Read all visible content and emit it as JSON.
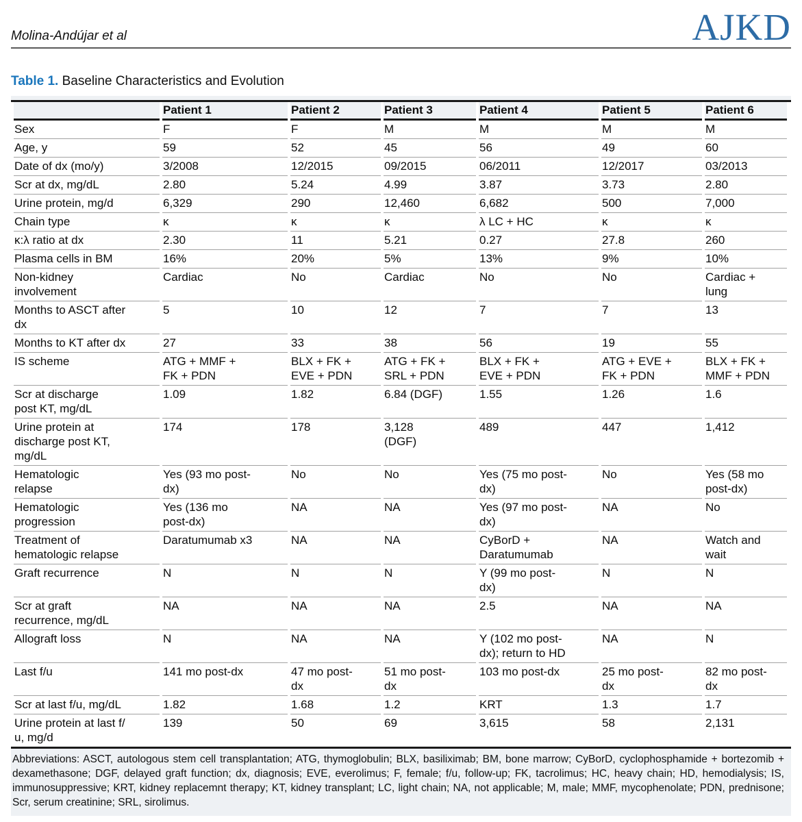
{
  "page": {
    "running_head": "Molina-Andújar et al",
    "journal_logo": "AJKD"
  },
  "caption": {
    "label": "Table 1.",
    "title": "Baseline Characteristics and Evolution"
  },
  "table": {
    "columns": [
      "",
      "Patient 1",
      "Patient 2",
      "Patient 3",
      "Patient 4",
      "Patient 5",
      "Patient 6"
    ],
    "rows": [
      {
        "label": "Sex",
        "values": [
          "F",
          "F",
          "M",
          "M",
          "M",
          "M"
        ]
      },
      {
        "label": "Age, y",
        "values": [
          "59",
          "52",
          "45",
          "56",
          "49",
          "60"
        ]
      },
      {
        "label": "Date of dx (mo/y)",
        "values": [
          "3/2008",
          "12/2015",
          "09/2015",
          "06/2011",
          "12/2017",
          "03/2013"
        ]
      },
      {
        "label": "Scr at dx, mg/dL",
        "values": [
          "2.80",
          "5.24",
          "4.99",
          "3.87",
          "3.73",
          "2.80"
        ]
      },
      {
        "label": "Urine protein, mg/d",
        "values": [
          "6,329",
          "290",
          "12,460",
          "6,682",
          "500",
          "7,000"
        ]
      },
      {
        "label": "Chain type",
        "values": [
          "κ",
          "κ",
          "κ",
          "λ LC + HC",
          "κ",
          "κ"
        ]
      },
      {
        "label": "κ:λ ratio at dx",
        "values": [
          "2.30",
          "11",
          "5.21",
          "0.27",
          "27.8",
          "260"
        ]
      },
      {
        "label": "Plasma cells in BM",
        "values": [
          "16%",
          "20%",
          "5%",
          "13%",
          "9%",
          "10%"
        ]
      },
      {
        "label": "Non-kidney\ninvolvement",
        "values": [
          "Cardiac",
          "No",
          "Cardiac",
          "No",
          "No",
          "Cardiac +\nlung"
        ]
      },
      {
        "label": "Months to ASCT after\ndx",
        "values": [
          "5",
          "10",
          "12",
          "7",
          "7",
          "13"
        ]
      },
      {
        "label": "Months to KT after dx",
        "values": [
          "27",
          "33",
          "38",
          "56",
          "19",
          "55"
        ]
      },
      {
        "label": "IS scheme",
        "values": [
          "ATG + MMF +\nFK + PDN",
          "BLX + FK +\nEVE + PDN",
          "ATG + FK +\nSRL + PDN",
          "BLX + FK +\nEVE + PDN",
          "ATG + EVE +\nFK + PDN",
          "BLX + FK +\nMMF + PDN"
        ]
      },
      {
        "label": "Scr at discharge\npost KT, mg/dL",
        "values": [
          "1.09",
          "1.82",
          "6.84 (DGF)",
          "1.55",
          "1.26",
          "1.6"
        ]
      },
      {
        "label": "Urine protein at\ndischarge post KT,\nmg/dL",
        "values": [
          "174",
          "178",
          "3,128\n(DGF)",
          "489",
          "447",
          "1,412"
        ]
      },
      {
        "label": "Hematologic\nrelapse",
        "values": [
          "Yes (93 mo post-\ndx)",
          "No",
          "No",
          "Yes (75 mo post-\ndx)",
          "No",
          "Yes (58 mo\npost-dx)"
        ]
      },
      {
        "label": "Hematologic\nprogression",
        "values": [
          "Yes (136 mo\npost-dx)",
          "NA",
          "NA",
          "Yes (97 mo post-\ndx)",
          "NA",
          "No"
        ]
      },
      {
        "label": "Treatment of\nhematologic relapse",
        "values": [
          "Daratumumab x3",
          "NA",
          "NA",
          "CyBorD +\nDaratumumab",
          "NA",
          "Watch and\nwait"
        ]
      },
      {
        "label": "Graft recurrence",
        "values": [
          "N",
          "N",
          "N",
          "Y (99 mo post-\ndx)",
          "N",
          "N"
        ]
      },
      {
        "label": "Scr at graft\nrecurrence, mg/dL",
        "values": [
          "NA",
          "NA",
          "NA",
          "2.5",
          "NA",
          "NA"
        ]
      },
      {
        "label": "Allograft loss",
        "values": [
          "N",
          "NA",
          "NA",
          "Y (102 mo post-\ndx); return to HD",
          "NA",
          "N"
        ]
      },
      {
        "label": "Last f/u",
        "values": [
          "141 mo post-dx",
          "47 mo post-\ndx",
          "51 mo post-\ndx",
          "103 mo post-dx",
          "25 mo post-\ndx",
          "82 mo post-\ndx"
        ]
      },
      {
        "label": "Scr at last f/u, mg/dL",
        "values": [
          "1.82",
          "1.68",
          "1.2",
          "KRT",
          "1.3",
          "1.7"
        ]
      },
      {
        "label": "Urine protein at last f/\nu, mg/d",
        "values": [
          "139",
          "50",
          "69",
          "3,615",
          "58",
          "2,131"
        ]
      }
    ],
    "footnote": "Abbreviations: ASCT, autologous stem cell transplantation; ATG, thymoglobulin; BLX, basiliximab; BM, bone marrow; CyBorD, cyclophosphamide + bortezomib + dexamethasone; DGF, delayed graft function; dx, diagnosis; EVE, everolimus; F, female; f/u, follow-up; FK, tacrolimus; HC, heavy chain; HD, hemodialysis; IS, immunosuppressive; KRT, kidney replacemnt therapy; KT, kidney transplant; LC, light chain; NA, not applicable; M, male; MMF, mycophenolate; PDN, prednisone; Scr, serum creatinine; SRL, sirolimus."
  },
  "colors": {
    "accent_blue": "#1a76bc",
    "logo_blue": "#2d6ca6",
    "band_gray": "#eef1f4",
    "rule_black": "#1a1a1a",
    "row_line_gray": "#a2a2a2"
  }
}
